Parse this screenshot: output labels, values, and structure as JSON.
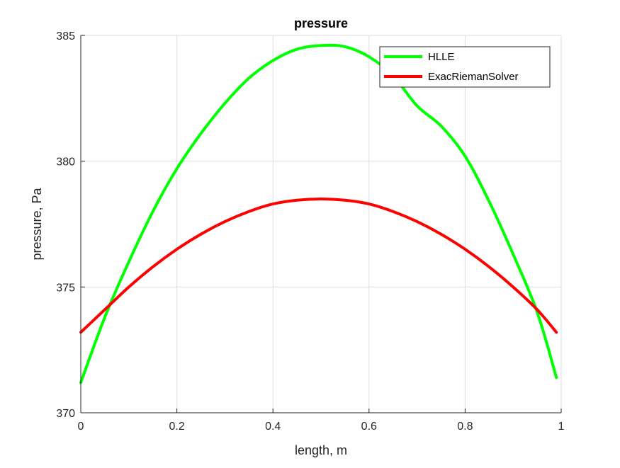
{
  "chart_data": {
    "type": "line",
    "title": "pressure",
    "xlabel": "length, m",
    "ylabel": "pressure, Pa",
    "xlim": [
      0,
      1
    ],
    "ylim": [
      370,
      385
    ],
    "xticks": [
      0,
      0.2,
      0.4,
      0.6,
      0.8,
      1
    ],
    "xtick_labels": [
      "0",
      "0.2",
      "0.4",
      "0.6",
      "0.8",
      "1"
    ],
    "yticks": [
      370,
      375,
      380,
      385
    ],
    "ytick_labels": [
      "370",
      "375",
      "380",
      "385"
    ],
    "grid": true,
    "legend_position": "top-right",
    "series": [
      {
        "name": "HLLE",
        "color": "#00ff00",
        "x": [
          0,
          0.05,
          0.1,
          0.15,
          0.2,
          0.25,
          0.3,
          0.35,
          0.4,
          0.45,
          0.5,
          0.55,
          0.6,
          0.65,
          0.7,
          0.75,
          0.8,
          0.85,
          0.9,
          0.95,
          0.99
        ],
        "y": [
          371.2,
          373.8,
          376.0,
          378.0,
          379.7,
          381.1,
          382.3,
          383.3,
          384.0,
          384.45,
          384.6,
          384.55,
          384.15,
          383.4,
          382.2,
          381.4,
          380.2,
          378.4,
          376.3,
          374.0,
          371.4
        ]
      },
      {
        "name": "ExacRiemanSolver",
        "color": "#ff0000",
        "x": [
          0,
          0.05,
          0.1,
          0.15,
          0.2,
          0.25,
          0.3,
          0.35,
          0.4,
          0.45,
          0.5,
          0.55,
          0.6,
          0.65,
          0.7,
          0.75,
          0.8,
          0.85,
          0.9,
          0.95,
          0.99
        ],
        "y": [
          373.2,
          374.1,
          375.0,
          375.8,
          376.5,
          377.1,
          377.6,
          378.0,
          378.3,
          378.45,
          378.5,
          378.45,
          378.3,
          378.0,
          377.6,
          377.1,
          376.5,
          375.8,
          375.0,
          374.1,
          373.2
        ]
      }
    ]
  }
}
